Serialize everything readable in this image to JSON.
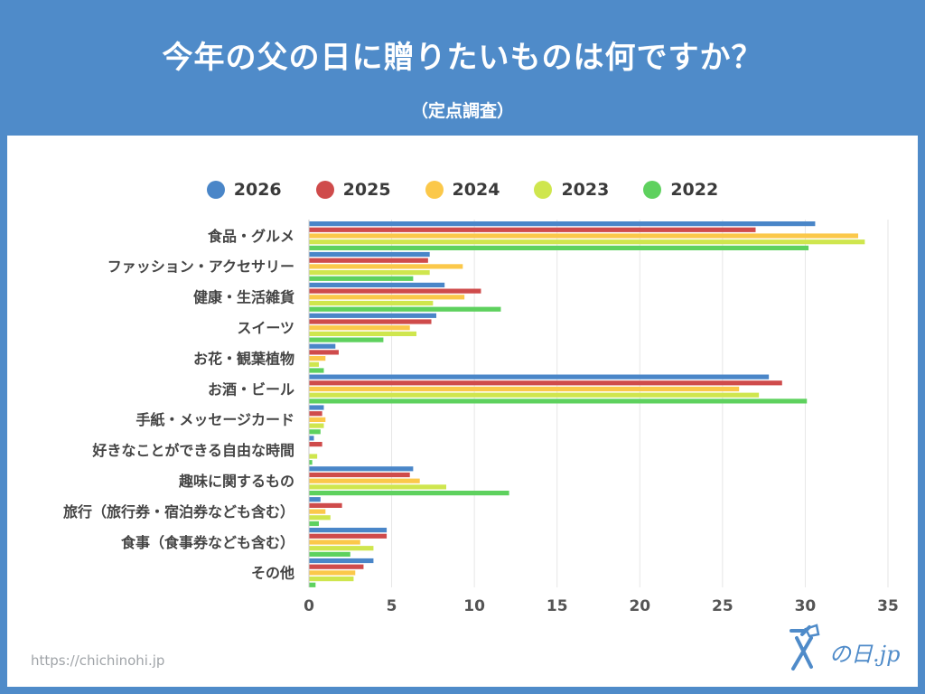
{
  "header": {
    "title": "今年の父の日に贈りたいものは何ですか？",
    "subtitle": "（定点調査）"
  },
  "footer": {
    "source_url": "https://chichinohi.jp",
    "logo_text": "の日.jp"
  },
  "chart_data": {
    "type": "bar",
    "orientation": "horizontal",
    "categories": [
      "食品・グルメ",
      "ファッション・アクセサリー",
      "健康・生活雑貨",
      "スイーツ",
      "お花・観葉植物",
      "お酒・ビール",
      "手紙・メッセージカード",
      "好きなことができる自由な時間",
      "趣味に関するもの",
      "旅行（旅行券・宿泊券なども含む）",
      "食事（食事券なども含む）",
      "その他"
    ],
    "series": [
      {
        "name": "2026",
        "color": "#4a86c8",
        "values": [
          30.6,
          7.3,
          8.2,
          7.7,
          1.6,
          27.8,
          0.9,
          0.3,
          6.3,
          0.7,
          4.7,
          3.9
        ]
      },
      {
        "name": "2025",
        "color": "#cf4b4b",
        "values": [
          27.0,
          7.2,
          10.4,
          7.4,
          1.8,
          28.6,
          0.8,
          0.8,
          6.1,
          2.0,
          4.7,
          3.3
        ]
      },
      {
        "name": "2024",
        "color": "#fbc84a",
        "values": [
          33.2,
          9.3,
          9.4,
          6.1,
          1.0,
          26.0,
          1.0,
          0.0,
          6.7,
          1.0,
          3.1,
          2.8
        ]
      },
      {
        "name": "2023",
        "color": "#cfe64e",
        "values": [
          33.6,
          7.3,
          7.5,
          6.5,
          0.6,
          27.2,
          0.9,
          0.5,
          8.3,
          1.3,
          3.9,
          2.7
        ]
      },
      {
        "name": "2022",
        "color": "#5ed15e",
        "values": [
          30.2,
          6.3,
          11.6,
          4.5,
          0.9,
          30.1,
          0.7,
          0.2,
          12.1,
          0.6,
          2.5,
          0.4
        ]
      }
    ],
    "xlim": [
      0,
      35
    ],
    "xticks": [
      0,
      5,
      10,
      15,
      20,
      25,
      30,
      35
    ],
    "xlabel": "",
    "ylabel": "",
    "grid": "vertical",
    "legend_position": "top"
  }
}
